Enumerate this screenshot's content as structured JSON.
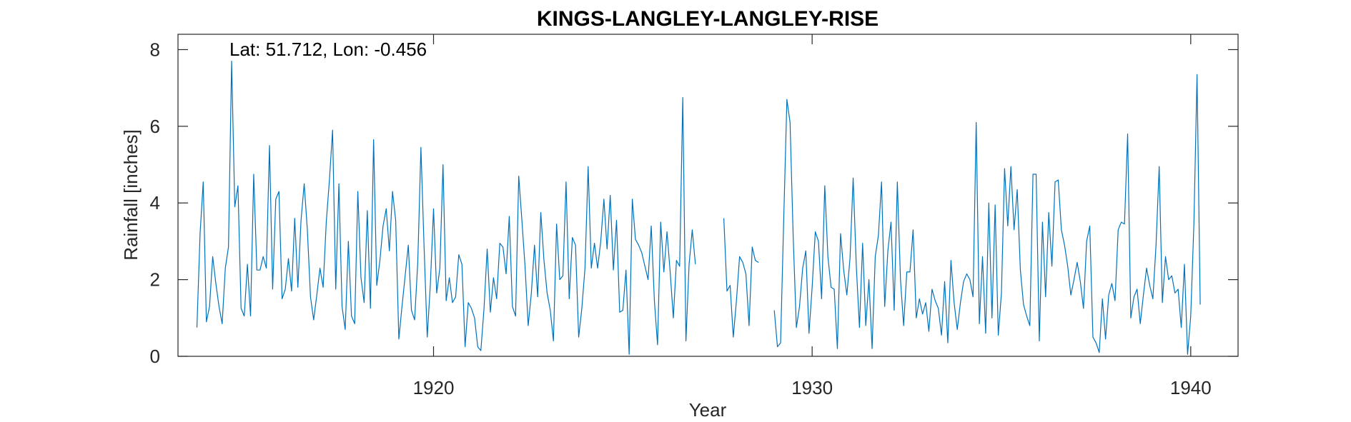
{
  "chart_data": {
    "type": "line",
    "title": "KINGS-LANGLEY-LANGLEY-RISE",
    "annotation": "Lat: 51.712, Lon: -0.456",
    "xlabel": "Year",
    "ylabel": "Rainfall [inches]",
    "xlim": [
      1913.25,
      1941.25
    ],
    "ylim": [
      0,
      8.4
    ],
    "xticks": [
      1920,
      1930,
      1940
    ],
    "yticks": [
      0,
      2,
      4,
      6,
      8
    ],
    "grid": false,
    "line_color": "#0072BD",
    "series": [
      {
        "segments": [
          {
            "start_year": 1913.75,
            "values": [
              0.75,
              3.2,
              4.55,
              0.9,
              1.3,
              2.6,
              1.9,
              1.3,
              0.85,
              2.3,
              2.85,
              7.7,
              3.9,
              4.45,
              1.25,
              1.05,
              2.4,
              1.05,
              4.75,
              2.25,
              2.25,
              2.6,
              2.3,
              5.5,
              1.75,
              4.1,
              4.3,
              1.5,
              1.75,
              2.55,
              1.7,
              3.6,
              1.8,
              3.55,
              4.5,
              3.3,
              1.55,
              0.95,
              1.6,
              2.3,
              1.8,
              3.5,
              4.6,
              5.9,
              1.75,
              4.5,
              1.3,
              0.7,
              3.0,
              1.05,
              0.85,
              4.3,
              2.05,
              1.4,
              3.8,
              1.25,
              5.65,
              1.85,
              2.5,
              3.4,
              3.85,
              2.75,
              4.3,
              3.55,
              0.45,
              1.3,
              2.1,
              2.9,
              1.2,
              0.95,
              2.45,
              5.45,
              2.85,
              0.5,
              1.9,
              3.85,
              1.65,
              2.3,
              5.0,
              1.45,
              2.05,
              1.4,
              1.55,
              2.65,
              2.4,
              0.25,
              1.4,
              1.25,
              1.0,
              0.25,
              0.15,
              1.25,
              2.8,
              1.15,
              2.05,
              1.5,
              2.95,
              2.85,
              2.15,
              3.65,
              1.3,
              1.05,
              4.7,
              3.55,
              2.35,
              0.8,
              1.65,
              2.9,
              1.55,
              3.75,
              2.5,
              1.65,
              1.2,
              0.4,
              3.45,
              2.0,
              2.1,
              4.55,
              1.5,
              3.1,
              2.9,
              0.5,
              1.25,
              2.3,
              4.95,
              2.3,
              2.95,
              2.3,
              3.0,
              4.1,
              2.8,
              4.2,
              2.25,
              3.55,
              1.15,
              1.2,
              2.25,
              0.05,
              4.1,
              3.05,
              2.9,
              2.7,
              2.35,
              2.0,
              3.4,
              1.45,
              0.3,
              3.5,
              2.2,
              3.25,
              2.2,
              1.0,
              2.5,
              2.35,
              6.75,
              0.4,
              2.4,
              3.3,
              2.4
            ]
          },
          {
            "start_year": 1927.667,
            "values": [
              3.6,
              1.7,
              1.85,
              0.5,
              1.45,
              2.6,
              2.45,
              2.15,
              0.8,
              2.85,
              2.5,
              2.45
            ]
          },
          {
            "start_year": 1929.0,
            "values": [
              1.2,
              0.25,
              0.35,
              3.6,
              6.7,
              6.1,
              3.1,
              0.75,
              1.3,
              2.3,
              2.75,
              0.6,
              1.8,
              3.25,
              3.0,
              1.5,
              4.45,
              2.6,
              1.8,
              1.75,
              0.2,
              3.2,
              2.25,
              1.6,
              2.55,
              4.65,
              2.35,
              0.75,
              2.95,
              0.8,
              2.0,
              0.2,
              2.6,
              3.15,
              4.55,
              1.3,
              2.75,
              3.5,
              1.2,
              4.55,
              2.0,
              0.8,
              2.2,
              2.2,
              3.3,
              1.0,
              1.5,
              1.1,
              1.4,
              0.65,
              1.75,
              1.45,
              1.25,
              0.55,
              1.95,
              0.35,
              2.5,
              1.4,
              0.7,
              1.4,
              1.95,
              2.15,
              2.0,
              1.55,
              6.1,
              0.85,
              2.6,
              0.6,
              4.0,
              1.0,
              3.95,
              0.55,
              1.65,
              4.9,
              3.4,
              4.95,
              3.3,
              4.35,
              2.25,
              1.35,
              1.05,
              0.8,
              4.75,
              4.75,
              0.4,
              3.5,
              1.55,
              3.75,
              2.35,
              4.55,
              4.6,
              3.3,
              2.9,
              2.35,
              1.6,
              2.0,
              2.45,
              1.95,
              1.25,
              3.0,
              3.4,
              0.5,
              0.35,
              0.1,
              1.5,
              0.45,
              1.6,
              1.9,
              1.45,
              3.3,
              3.5,
              3.45,
              5.8,
              1.0,
              1.55,
              1.75,
              0.85,
              1.6,
              2.3,
              1.85,
              1.5,
              2.9,
              4.95,
              1.4,
              2.6,
              2.0,
              2.1,
              1.65,
              1.75,
              0.75,
              2.4,
              0.05,
              1.05,
              3.45,
              7.35,
              1.35
            ]
          }
        ]
      }
    ]
  }
}
